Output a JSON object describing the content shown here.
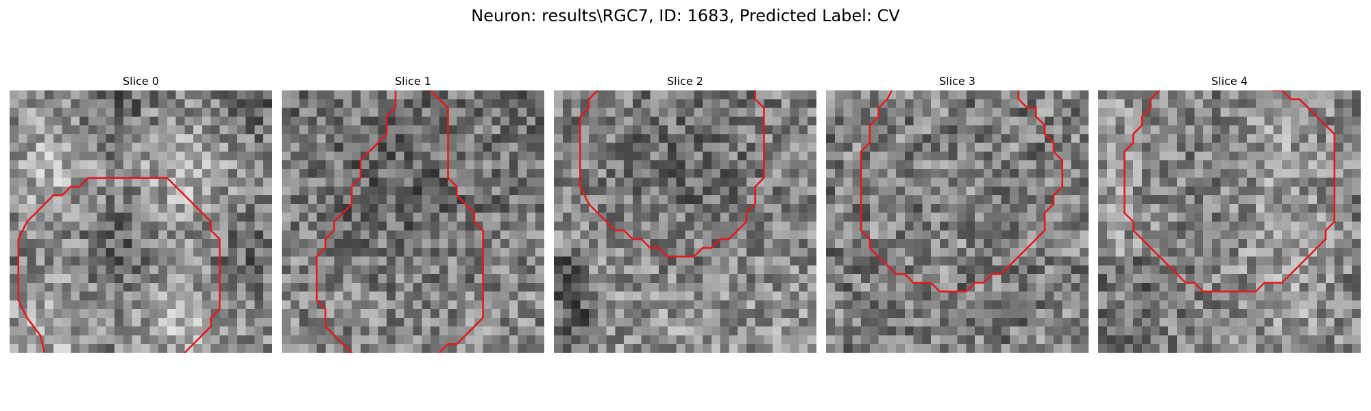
{
  "figure": {
    "title": "Neuron: results\\RGC7, ID: 1683, Predicted Label: CV",
    "contour_color": "#e31a1c",
    "colormap": "gray"
  },
  "slices": [
    {
      "title": "Slice 0",
      "contour": [
        [
          4,
          30
        ],
        [
          3.5,
          28
        ],
        [
          2,
          26
        ],
        [
          1,
          24
        ],
        [
          1,
          17
        ],
        [
          2,
          15
        ],
        [
          3,
          14
        ],
        [
          4,
          13
        ],
        [
          5,
          12
        ],
        [
          6,
          12
        ],
        [
          7,
          11
        ],
        [
          8,
          11
        ],
        [
          9,
          10
        ],
        [
          18,
          10
        ],
        [
          19,
          11
        ],
        [
          20,
          12
        ],
        [
          21,
          13
        ],
        [
          22,
          14
        ],
        [
          23,
          15
        ],
        [
          23,
          16
        ],
        [
          24,
          17
        ],
        [
          24,
          25
        ],
        [
          23,
          26
        ],
        [
          23,
          27
        ],
        [
          22,
          28
        ],
        [
          21,
          29
        ],
        [
          20,
          30
        ]
      ]
    },
    {
      "title": "Slice 1",
      "contour": [
        [
          8,
          30
        ],
        [
          7,
          29
        ],
        [
          6,
          28
        ],
        [
          5,
          27
        ],
        [
          5,
          25
        ],
        [
          4,
          24
        ],
        [
          4,
          19
        ],
        [
          5,
          18
        ],
        [
          5,
          17
        ],
        [
          6,
          16
        ],
        [
          6,
          15
        ],
        [
          7,
          14
        ],
        [
          8,
          13
        ],
        [
          8,
          11
        ],
        [
          9,
          10
        ],
        [
          9,
          8
        ],
        [
          10,
          7
        ],
        [
          11,
          6
        ],
        [
          12,
          5
        ],
        [
          12,
          3
        ],
        [
          13,
          2
        ],
        [
          13,
          0
        ]
      ],
      "contour2": [
        [
          18,
          30
        ],
        [
          19,
          29
        ],
        [
          20,
          29
        ],
        [
          21,
          28
        ],
        [
          22,
          27
        ],
        [
          23,
          26
        ],
        [
          23,
          25
        ],
        [
          23,
          16
        ],
        [
          22,
          15
        ],
        [
          22,
          14
        ],
        [
          21,
          13
        ],
        [
          20,
          12
        ],
        [
          20,
          11
        ],
        [
          19,
          10
        ],
        [
          19,
          2
        ],
        [
          18,
          1
        ],
        [
          17,
          0
        ]
      ]
    },
    {
      "title": "Slice 2",
      "contour": [
        [
          5,
          0
        ],
        [
          4,
          1
        ],
        [
          4,
          2
        ],
        [
          3,
          3
        ],
        [
          3,
          5
        ],
        [
          3,
          11
        ],
        [
          4,
          13
        ],
        [
          5,
          14
        ],
        [
          6,
          15
        ],
        [
          7,
          16
        ],
        [
          8,
          16
        ],
        [
          9,
          17
        ],
        [
          10,
          17
        ],
        [
          11,
          18
        ],
        [
          12,
          18
        ],
        [
          13,
          19
        ],
        [
          16,
          19
        ],
        [
          17,
          18
        ],
        [
          18,
          18
        ],
        [
          19,
          17
        ],
        [
          20,
          17
        ],
        [
          21,
          16
        ],
        [
          22,
          15
        ],
        [
          22,
          14
        ],
        [
          23,
          13
        ],
        [
          23,
          11
        ],
        [
          24,
          10
        ],
        [
          24,
          2
        ],
        [
          23,
          1
        ],
        [
          23,
          0
        ]
      ]
    },
    {
      "title": "Slice 3",
      "contour": [
        [
          7.5,
          0
        ],
        [
          7,
          1
        ],
        [
          6,
          2
        ],
        [
          6,
          3
        ],
        [
          5,
          4
        ],
        [
          5,
          5
        ],
        [
          5,
          6
        ],
        [
          4,
          7
        ],
        [
          4,
          16
        ],
        [
          5,
          17
        ],
        [
          5,
          18
        ],
        [
          6,
          19
        ],
        [
          7,
          20
        ],
        [
          8,
          21
        ],
        [
          9,
          21
        ],
        [
          10,
          22
        ],
        [
          11,
          22
        ],
        [
          12,
          22
        ],
        [
          13,
          23
        ],
        [
          15,
          23
        ],
        [
          16,
          23
        ],
        [
          17,
          22
        ],
        [
          18,
          22
        ],
        [
          19,
          21
        ],
        [
          20,
          21
        ],
        [
          21,
          20
        ],
        [
          22,
          19
        ],
        [
          23,
          18
        ],
        [
          24,
          17
        ],
        [
          25,
          16
        ],
        [
          25,
          14
        ],
        [
          26,
          13
        ],
        [
          26,
          12
        ],
        [
          27,
          11
        ],
        [
          27,
          9
        ],
        [
          27,
          8
        ],
        [
          26,
          7
        ],
        [
          26,
          6
        ],
        [
          25,
          5
        ],
        [
          25,
          4
        ],
        [
          24,
          3
        ],
        [
          24,
          2
        ],
        [
          23,
          2
        ],
        [
          22,
          1
        ],
        [
          22,
          0
        ]
      ]
    },
    {
      "title": "Slice 4",
      "contour": [
        [
          7,
          0
        ],
        [
          6,
          1
        ],
        [
          6,
          2
        ],
        [
          5,
          3
        ],
        [
          5,
          4
        ],
        [
          4,
          5
        ],
        [
          4,
          6
        ],
        [
          3,
          7
        ],
        [
          3,
          8
        ],
        [
          3,
          14
        ],
        [
          4,
          15
        ],
        [
          4,
          16
        ],
        [
          5,
          17
        ],
        [
          6,
          18
        ],
        [
          7,
          19
        ],
        [
          8,
          20
        ],
        [
          9,
          21
        ],
        [
          10,
          22
        ],
        [
          11,
          22
        ],
        [
          12,
          23
        ],
        [
          18,
          23
        ],
        [
          19,
          22
        ],
        [
          21,
          22
        ],
        [
          22,
          21
        ],
        [
          23,
          20
        ],
        [
          24,
          19
        ],
        [
          25,
          18
        ],
        [
          26,
          17
        ],
        [
          26,
          16
        ],
        [
          27,
          15
        ],
        [
          27,
          5
        ],
        [
          26,
          4
        ],
        [
          25,
          3
        ],
        [
          24,
          2
        ],
        [
          23,
          1
        ],
        [
          22,
          1
        ],
        [
          21,
          0
        ],
        [
          20,
          0
        ]
      ]
    }
  ]
}
